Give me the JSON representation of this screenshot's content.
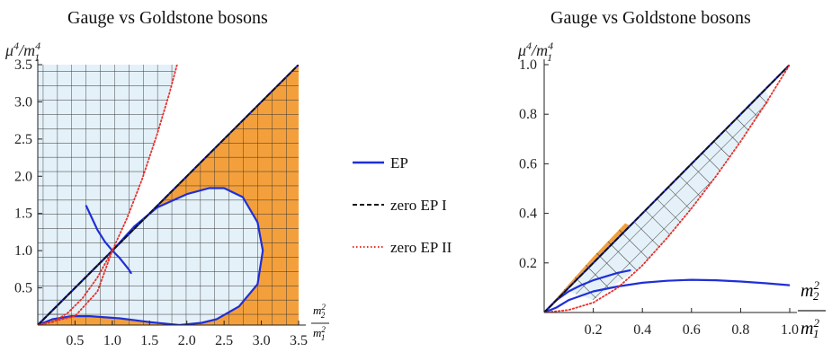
{
  "chart_data": [
    {
      "type": "region",
      "title": "Gauge vs Goldstone bosons",
      "ylabel": "μ⁴/m₁⁴",
      "xlabel": "m₂²/m₁²",
      "xlim": [
        0,
        3.5
      ],
      "ylim": [
        0,
        3.5
      ],
      "xticks": [
        "0.5",
        "1.0",
        "1.5",
        "2.0",
        "2.5",
        "3.0",
        "3.5"
      ],
      "yticks": [
        "0.5",
        "1.0",
        "1.5",
        "2.0",
        "2.5",
        "3.0",
        "3.5"
      ],
      "series": [
        {
          "name": "EP",
          "style": "solid",
          "color": "#1f2fd6",
          "curves": [
            [
              [
                0,
                0
              ],
              [
                0.2,
                0.2
              ],
              [
                0.5,
                0.5
              ],
              [
                1.0,
                1.0
              ],
              [
                1.3,
                1.33
              ],
              [
                1.6,
                1.58
              ],
              [
                2.0,
                1.76
              ],
              [
                2.3,
                1.84
              ],
              [
                2.5,
                1.84
              ],
              [
                2.75,
                1.72
              ],
              [
                2.95,
                1.38
              ],
              [
                3.02,
                1.0
              ],
              [
                2.95,
                0.55
              ],
              [
                2.7,
                0.25
              ],
              [
                2.4,
                0.08
              ],
              [
                2.2,
                0.03
              ],
              [
                1.9,
                0.0
              ],
              [
                1.5,
                0.04
              ],
              [
                1.1,
                0.09
              ],
              [
                0.7,
                0.12
              ],
              [
                0.45,
                0.12
              ],
              [
                0.2,
                0.08
              ],
              [
                0,
                0
              ]
            ],
            [
              [
                0,
                0
              ],
              [
                0.4,
                0.4
              ],
              [
                0.8,
                0.8
              ],
              [
                1.0,
                1.0
              ],
              [
                1.5,
                1.5
              ],
              [
                2.0,
                2.0
              ],
              [
                2.5,
                2.5
              ],
              [
                3.0,
                3.0
              ],
              [
                3.5,
                3.5
              ]
            ],
            [
              [
                0.65,
                1.6
              ],
              [
                0.8,
                1.28
              ],
              [
                0.9,
                1.12
              ],
              [
                1.0,
                1.0
              ],
              [
                1.1,
                0.9
              ],
              [
                1.22,
                0.75
              ],
              [
                1.25,
                0.7
              ]
            ]
          ]
        },
        {
          "name": "zero EP I",
          "style": "dashed",
          "color": "#111111",
          "curves": [
            [
              [
                0,
                0
              ],
              [
                3.5,
                3.5
              ]
            ]
          ]
        },
        {
          "name": "zero EP II",
          "style": "dotted",
          "color": "#e8302a",
          "curves": [
            [
              [
                0,
                0
              ],
              [
                0.2,
                0.04
              ],
              [
                0.4,
                0.16
              ],
              [
                0.6,
                0.36
              ],
              [
                0.8,
                0.64
              ],
              [
                1.0,
                1.0
              ],
              [
                1.2,
                1.44
              ],
              [
                1.4,
                1.96
              ],
              [
                1.6,
                2.56
              ],
              [
                1.77,
                3.13
              ],
              [
                1.87,
                3.5
              ]
            ],
            [
              [
                0,
                0
              ],
              [
                0.5,
                0.12
              ],
              [
                0.8,
                0.45
              ],
              [
                1.0,
                1.0
              ]
            ]
          ]
        }
      ],
      "regions": {
        "hatched_light": [
          [
            [
              0,
              0
            ],
            [
              0,
              3.5
            ],
            [
              1.87,
              3.5
            ],
            [
              1.6,
              2.56
            ],
            [
              1.4,
              1.96
            ],
            [
              1.2,
              1.44
            ],
            [
              1.0,
              1.0
            ],
            [
              0.8,
              0.64
            ],
            [
              0.6,
              0.36
            ],
            [
              0.4,
              0.16
            ],
            [
              0.2,
              0.04
            ]
          ],
          [
            [
              0.05,
              0.05
            ],
            [
              0.5,
              0.5
            ],
            [
              1.0,
              1.0
            ],
            [
              1.3,
              1.33
            ],
            [
              1.6,
              1.58
            ],
            [
              2.0,
              1.76
            ],
            [
              2.3,
              1.84
            ],
            [
              2.5,
              1.84
            ],
            [
              2.75,
              1.72
            ],
            [
              2.95,
              1.38
            ],
            [
              3.02,
              1.0
            ],
            [
              2.95,
              0.55
            ],
            [
              2.7,
              0.25
            ],
            [
              2.4,
              0.08
            ],
            [
              2.2,
              0.03
            ],
            [
              1.9,
              0.0
            ],
            [
              1.5,
              0.04
            ],
            [
              1.1,
              0.09
            ],
            [
              0.7,
              0.12
            ],
            [
              0.45,
              0.12
            ],
            [
              0.2,
              0.08
            ]
          ]
        ],
        "orange": [
          [
            [
              0,
              0
            ],
            [
              3.5,
              3.5
            ],
            [
              3.5,
              0
            ],
            [
              1.9,
              0
            ],
            [
              2.2,
              0.03
            ],
            [
              2.4,
              0.08
            ],
            [
              2.7,
              0.25
            ],
            [
              2.95,
              0.55
            ],
            [
              3.02,
              1.0
            ],
            [
              2.95,
              1.38
            ],
            [
              2.75,
              1.72
            ],
            [
              2.5,
              1.84
            ],
            [
              2.3,
              1.84
            ],
            [
              2.0,
              1.76
            ],
            [
              1.6,
              1.58
            ],
            [
              1.3,
              1.33
            ],
            [
              1.0,
              1.0
            ]
          ],
          [
            [
              0,
              0
            ],
            [
              0.2,
              0.08
            ],
            [
              0.45,
              0.12
            ],
            [
              0.7,
              0.12
            ],
            [
              1.1,
              0.09
            ],
            [
              1.5,
              0.04
            ],
            [
              1.9,
              0.0
            ],
            [
              0,
              0
            ]
          ]
        ]
      },
      "colors": {
        "light": "#e4f1f8",
        "orange": "#f3a03c",
        "hatch": "#333333"
      }
    },
    {
      "type": "region",
      "title": "Gauge vs Goldstone bosons",
      "ylabel": "μ⁴/m₁⁴",
      "xlabel": "m₂²/m₁²",
      "xlim": [
        0,
        1.0
      ],
      "ylim": [
        0,
        1.0
      ],
      "xticks": [
        "0.2",
        "0.4",
        "0.6",
        "0.8",
        "1.0"
      ],
      "yticks": [
        "0.2",
        "0.4",
        "0.6",
        "0.8",
        "1.0"
      ],
      "series": [
        {
          "name": "EP",
          "style": "solid",
          "color": "#1f2fd6",
          "curves": [
            [
              [
                0,
                0
              ],
              [
                0.25,
                0.25
              ],
              [
                0.5,
                0.5
              ],
              [
                0.75,
                0.75
              ],
              [
                1.0,
                1.0
              ]
            ],
            [
              [
                0,
                0
              ],
              [
                0.05,
                0.02
              ],
              [
                0.1,
                0.05
              ],
              [
                0.2,
                0.085
              ],
              [
                0.3,
                0.105
              ],
              [
                0.4,
                0.12
              ],
              [
                0.5,
                0.128
              ],
              [
                0.6,
                0.132
              ],
              [
                0.7,
                0.13
              ],
              [
                0.8,
                0.125
              ],
              [
                0.9,
                0.118
              ],
              [
                1.0,
                0.11
              ]
            ],
            [
              [
                0,
                0
              ],
              [
                0.05,
                0.05
              ],
              [
                0.1,
                0.085
              ],
              [
                0.15,
                0.11
              ],
              [
                0.2,
                0.13
              ],
              [
                0.3,
                0.16
              ],
              [
                0.35,
                0.17
              ]
            ]
          ]
        },
        {
          "name": "zero EP I",
          "style": "dashed",
          "color": "#111111",
          "curves": [
            [
              [
                0,
                0
              ],
              [
                1.0,
                1.0
              ]
            ]
          ]
        },
        {
          "name": "zero EP II",
          "style": "dotted",
          "color": "#e8302a",
          "curves": [
            [
              [
                0,
                0
              ],
              [
                0.1,
                0.01
              ],
              [
                0.2,
                0.04
              ],
              [
                0.3,
                0.1
              ],
              [
                0.4,
                0.19
              ],
              [
                0.5,
                0.3
              ],
              [
                0.6,
                0.42
              ],
              [
                0.7,
                0.55
              ],
              [
                0.8,
                0.69
              ],
              [
                0.9,
                0.84
              ],
              [
                1.0,
                1.0
              ]
            ]
          ]
        }
      ],
      "regions": {
        "hatched_light": [
          [
            [
              0.1,
              0.085
            ],
            [
              0.2,
              0.2
            ],
            [
              0.4,
              0.4
            ],
            [
              0.6,
              0.6
            ],
            [
              0.8,
              0.8
            ],
            [
              0.9,
              0.9
            ],
            [
              0.92,
              0.86
            ],
            [
              0.8,
              0.69
            ],
            [
              0.7,
              0.55
            ],
            [
              0.6,
              0.42
            ],
            [
              0.5,
              0.3
            ],
            [
              0.4,
              0.19
            ],
            [
              0.3,
              0.12
            ],
            [
              0.2,
              0.05
            ]
          ]
        ],
        "orange": [
          [
            [
              0.02,
              0.025
            ],
            [
              0.2,
              0.225
            ],
            [
              0.33,
              0.36
            ],
            [
              0.35,
              0.35
            ],
            [
              0.2,
              0.205
            ],
            [
              0.03,
              0.028
            ]
          ]
        ]
      },
      "colors": {
        "light": "#e4f1f8",
        "orange": "#f3a03c",
        "hatch": "#333333"
      }
    }
  ],
  "legend": {
    "items": [
      {
        "label": "EP",
        "style": "solid",
        "color": "#1f2fd6"
      },
      {
        "label": "zero EP I",
        "style": "dashed",
        "color": "#111111"
      },
      {
        "label": "zero EP II",
        "style": "dotted",
        "color": "#e8302a"
      }
    ]
  }
}
